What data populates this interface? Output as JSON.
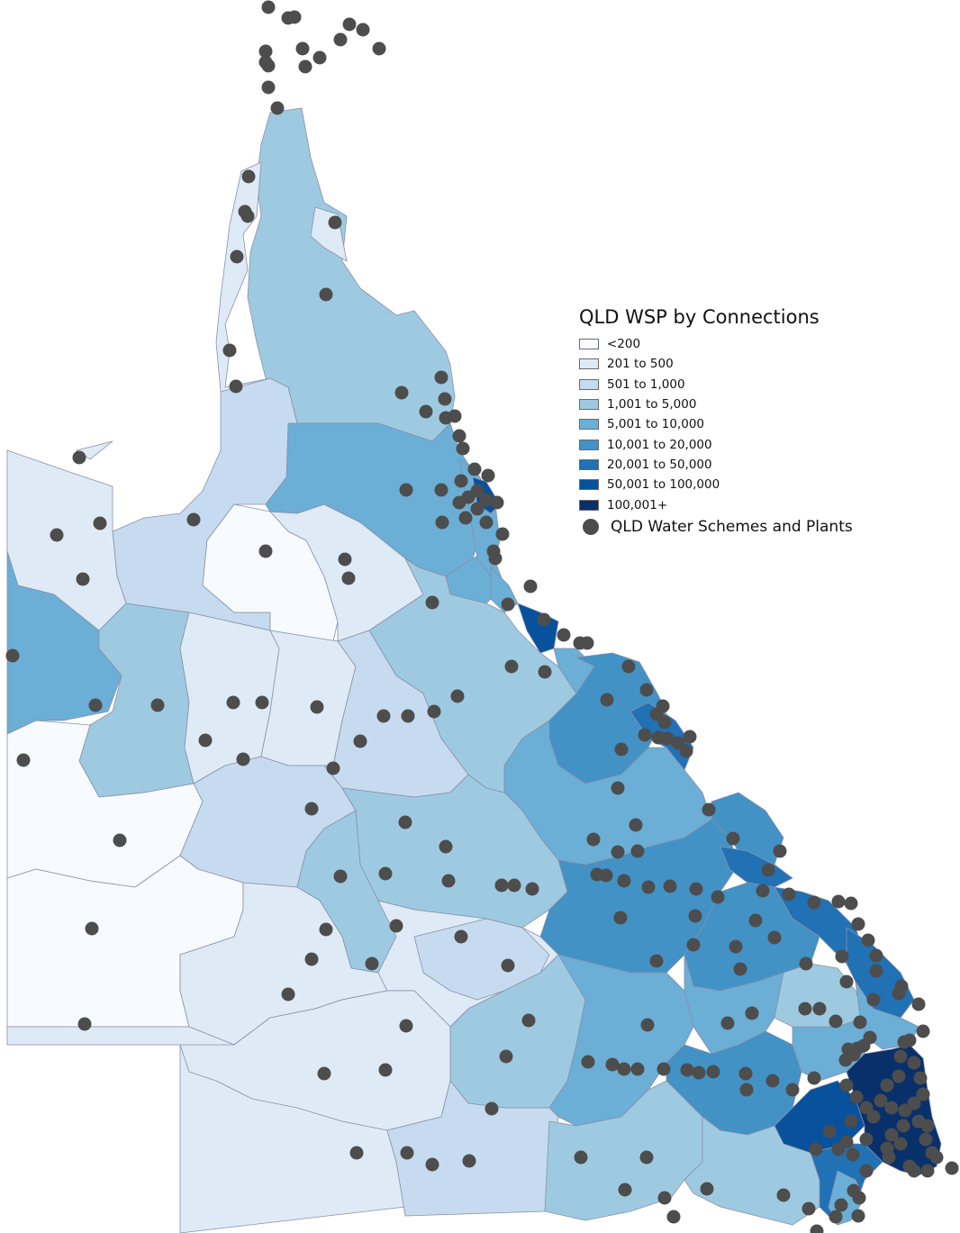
{
  "legend": {
    "title": "QLD WSP by Connections",
    "classes": [
      {
        "label": "<200",
        "color": "#f7fbff"
      },
      {
        "label": "201 to 500",
        "color": "#deebf7"
      },
      {
        "label": "501 to 1,000",
        "color": "#c6dbef"
      },
      {
        "label": "1,001 to 5,000",
        "color": "#9ecae1"
      },
      {
        "label": "5,001 to 10,000",
        "color": "#6baed6"
      },
      {
        "label": "10,001 to 20,000",
        "color": "#4292c6"
      },
      {
        "label": "20,001 to 50,000",
        "color": "#2171b5"
      },
      {
        "label": "50,001 to 100,000",
        "color": "#08519c"
      },
      {
        "label": "100,001+",
        "color": "#08306b"
      }
    ],
    "points_label": "QLD Water Schemes and Plants",
    "point_color": "#4d4d4d"
  }
}
